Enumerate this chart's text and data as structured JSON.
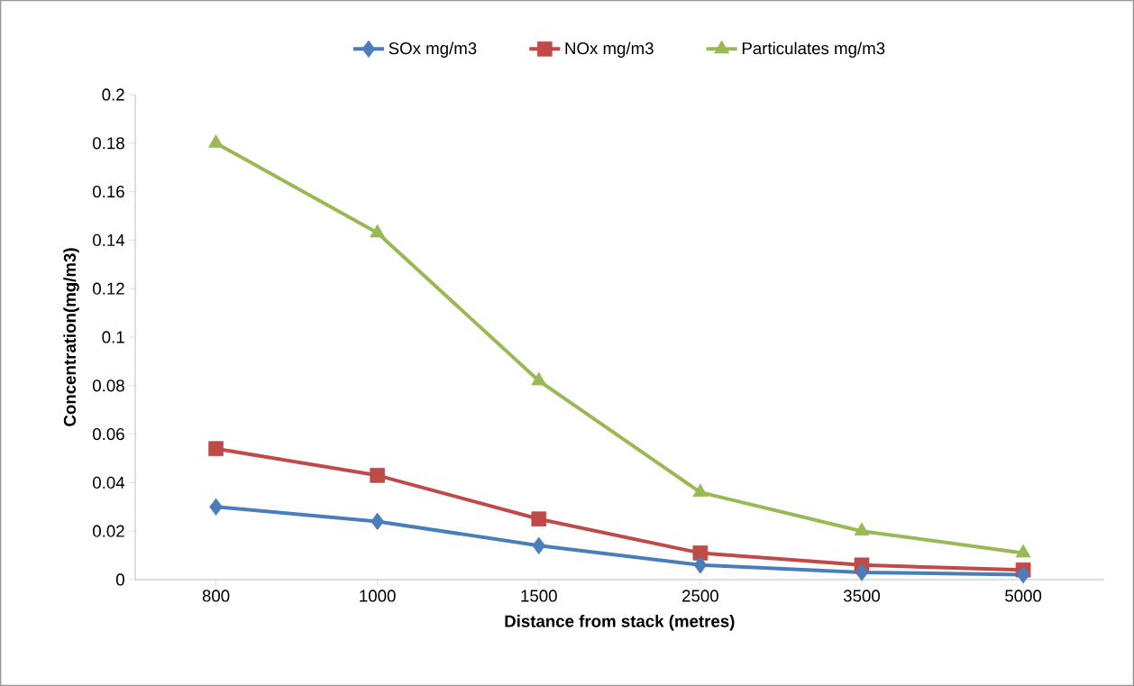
{
  "chart_data": {
    "type": "line",
    "xlabel": "Distance from stack (metres)",
    "ylabel": "Concentration(mg/m3)",
    "categories": [
      "800",
      "1000",
      "1500",
      "2500",
      "3500",
      "5000"
    ],
    "series": [
      {
        "name": "SOx mg/m3",
        "color": "#4a7ebb",
        "marker": "diamond",
        "values": [
          0.03,
          0.024,
          0.014,
          0.006,
          0.003,
          0.002
        ]
      },
      {
        "name": "NOx mg/m3",
        "color": "#be4b48",
        "marker": "square",
        "values": [
          0.054,
          0.043,
          0.025,
          0.011,
          0.006,
          0.004
        ]
      },
      {
        "name": "Particulates mg/m3",
        "color": "#98b954",
        "marker": "triangle",
        "values": [
          0.18,
          0.143,
          0.082,
          0.036,
          0.02,
          0.011
        ]
      }
    ],
    "ylim": [
      0,
      0.2
    ],
    "yticks": [
      0,
      0.02,
      0.04,
      0.06,
      0.08,
      0.1,
      0.12,
      0.14,
      0.16,
      0.18,
      0.2
    ],
    "grid": false,
    "legend": "top",
    "line_style": "solid"
  }
}
